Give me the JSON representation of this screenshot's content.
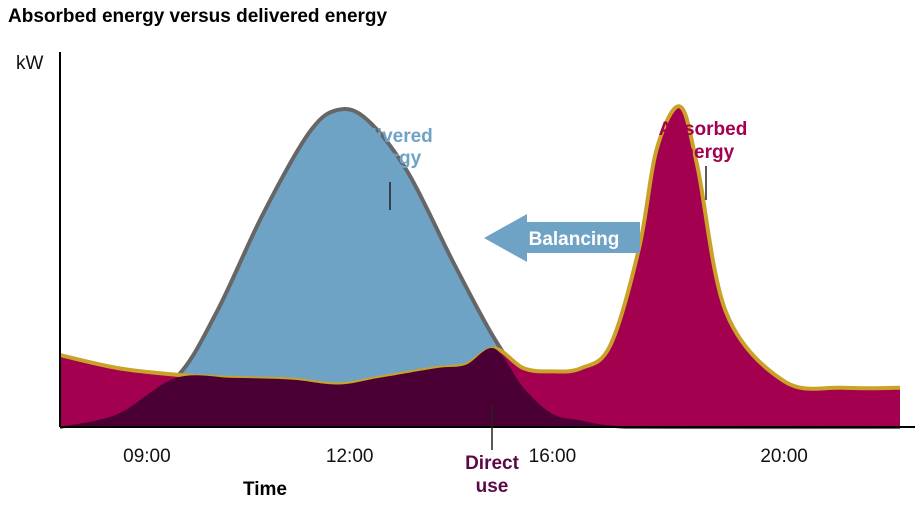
{
  "chart_data": {
    "type": "area",
    "title": "Absorbed energy versus delivered energy",
    "ylabel": "kW",
    "xlabel": "Time",
    "x_ticks": [
      "09:00",
      "12:00",
      "16:00",
      "20:00"
    ],
    "xlim": [
      7.5,
      22.0
    ],
    "ylim": [
      0,
      100
    ],
    "series": [
      {
        "name": "Delivered energy",
        "color": "#6FA3C6",
        "outline": "#666666",
        "x": [
          7.5,
          8.5,
          9.5,
          10.2,
          11.0,
          11.8,
          12.3,
          12.8,
          13.5,
          14.3,
          15.0,
          15.6,
          16.2,
          17.0,
          18.0,
          22.0
        ],
        "values": [
          0,
          4,
          15,
          35,
          65,
          90,
          97,
          94,
          78,
          50,
          27,
          12,
          4,
          0.5,
          0,
          0
        ]
      },
      {
        "name": "Absorbed energy",
        "color": "#A3004F",
        "outline": "#C9A227",
        "x": [
          7.5,
          8.5,
          9.5,
          10.5,
          11.5,
          12.3,
          13.0,
          14.0,
          14.5,
          15.0,
          15.5,
          16.0,
          16.5,
          17.0,
          17.5,
          17.8,
          18.2,
          18.5,
          19.0,
          20.0,
          21.0,
          22.0
        ],
        "values": [
          22,
          18,
          16,
          15,
          14.5,
          13,
          15,
          18,
          19,
          24,
          18,
          17,
          18,
          25,
          55,
          85,
          98,
          80,
          35,
          14,
          12,
          12
        ]
      },
      {
        "name": "Direct use",
        "color": "#4B0035",
        "x": [
          7.5,
          8.5,
          9.5,
          10.5,
          11.5,
          12.3,
          13.0,
          14.0,
          14.5,
          15.0,
          15.5,
          16.0,
          16.5,
          17.0,
          18.0,
          22.0
        ],
        "values": [
          0,
          4,
          15,
          15,
          14.5,
          13,
          15,
          18,
          19,
          24,
          12,
          4,
          2,
          0.5,
          0,
          0
        ]
      }
    ],
    "annotations": {
      "delivered": [
        "Delivered",
        "energy"
      ],
      "absorbed": [
        "Absorbed",
        "energy"
      ],
      "direct": [
        "Direct",
        "use"
      ],
      "arrow": "Balancing"
    },
    "grid": false,
    "legend": "none"
  }
}
